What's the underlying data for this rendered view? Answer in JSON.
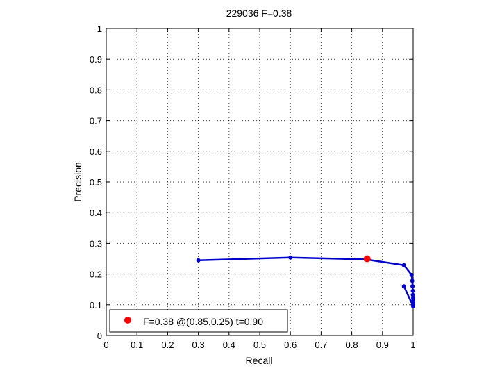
{
  "chart_data": {
    "type": "line",
    "title": "229036 F=0.38",
    "xlabel": "Recall",
    "ylabel": "Precision",
    "xlim": [
      0,
      1
    ],
    "ylim": [
      0,
      1
    ],
    "x_ticks": [
      "0",
      "0.1",
      "0.2",
      "0.3",
      "0.4",
      "0.5",
      "0.6",
      "0.7",
      "0.8",
      "0.9",
      "1"
    ],
    "y_ticks": [
      "0",
      "0.1",
      "0.2",
      "0.3",
      "0.4",
      "0.5",
      "0.6",
      "0.7",
      "0.8",
      "0.9",
      "1"
    ],
    "grid": true,
    "legend_position": "bottom-left",
    "series": [
      {
        "color": "#0000cc",
        "points": [
          [
            0.3,
            0.245
          ],
          [
            0.6,
            0.254
          ],
          [
            0.845,
            0.248
          ],
          [
            0.97,
            0.229
          ],
          [
            0.995,
            0.197
          ],
          [
            0.997,
            0.178
          ],
          [
            0.998,
            0.16
          ],
          [
            0.999,
            0.145
          ],
          [
            0.999,
            0.132
          ],
          [
            1.0,
            0.122
          ],
          [
            1.0,
            0.113
          ],
          [
            1.0,
            0.106
          ],
          [
            1.0,
            0.1
          ],
          [
            1.0,
            0.095
          ],
          [
            0.97,
            0.16
          ]
        ]
      }
    ],
    "highlight": {
      "x": 0.85,
      "y": 0.25,
      "color": "#ff0000",
      "legend_label": "F=0.38 @(0.85,0.25) t=0.90"
    }
  }
}
